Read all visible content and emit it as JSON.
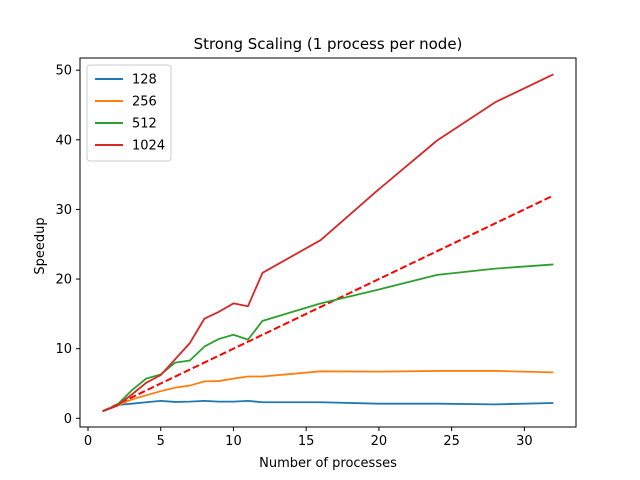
{
  "chart_data": {
    "type": "line",
    "title": "Strong Scaling (1 process per node)",
    "xlabel": "Number of processes",
    "ylabel": "Speedup",
    "xlim": [
      -0.55,
      33.55
    ],
    "ylim": [
      -1.25,
      51.75
    ],
    "xticks": [
      0,
      5,
      10,
      15,
      20,
      25,
      30
    ],
    "yticks": [
      0,
      10,
      20,
      30,
      40,
      50
    ],
    "grid": false,
    "legend_position": "top-left",
    "series": [
      {
        "name": "128",
        "color": "#1f77b4",
        "x": [
          1,
          2,
          3,
          4,
          5,
          6,
          7,
          8,
          9,
          10,
          11,
          12,
          16,
          20,
          24,
          28,
          32
        ],
        "y": [
          1,
          1.9,
          2.1,
          2.3,
          2.5,
          2.35,
          2.4,
          2.5,
          2.4,
          2.4,
          2.5,
          2.3,
          2.3,
          2.1,
          2.1,
          2.0,
          2.2
        ]
      },
      {
        "name": "256",
        "color": "#ff7f0e",
        "x": [
          1,
          2,
          3,
          4,
          5,
          6,
          7,
          8,
          9,
          10,
          11,
          12,
          16,
          20,
          24,
          28,
          32
        ],
        "y": [
          1,
          1.8,
          2.7,
          3.3,
          3.9,
          4.4,
          4.7,
          5.3,
          5.35,
          5.7,
          6.0,
          6.0,
          6.75,
          6.7,
          6.8,
          6.8,
          6.6
        ]
      },
      {
        "name": "512",
        "color": "#2ca02c",
        "x": [
          1,
          2,
          3,
          4,
          5,
          6,
          7,
          8,
          9,
          10,
          11,
          12,
          16,
          20,
          24,
          28,
          32
        ],
        "y": [
          1,
          1.9,
          4.0,
          5.7,
          6.3,
          8.0,
          8.3,
          10.3,
          11.4,
          12.0,
          11.3,
          14.0,
          16.5,
          18.5,
          20.6,
          21.5,
          22.1
        ]
      },
      {
        "name": "1024",
        "color": "#d62728",
        "x": [
          1,
          2,
          3,
          4,
          5,
          6,
          7,
          8,
          9,
          10,
          11,
          12,
          16,
          20,
          24,
          28,
          32
        ],
        "y": [
          1,
          1.8,
          3.4,
          5.1,
          6.2,
          8.5,
          10.8,
          14.3,
          15.3,
          16.5,
          16.1,
          20.9,
          25.6,
          32.9,
          39.9,
          45.4,
          49.4
        ]
      }
    ],
    "reference_line": {
      "color": "#ff0000",
      "style": "dashed",
      "x": [
        1,
        32
      ],
      "y": [
        1,
        32
      ]
    }
  }
}
